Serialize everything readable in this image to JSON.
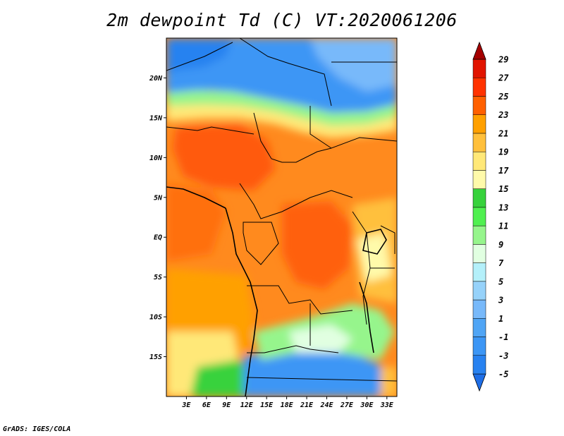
{
  "title": "2m dewpoint Td (C) VT:2020061206",
  "credit": "GrADS: IGES/COLA",
  "map": {
    "lon_range": [
      0,
      34.5
    ],
    "lat_range": [
      -20,
      25
    ],
    "lat_ticks": [
      {
        "value": 20,
        "label": "20N"
      },
      {
        "value": 15,
        "label": "15N"
      },
      {
        "value": 10,
        "label": "10N"
      },
      {
        "value": 5,
        "label": "5N"
      },
      {
        "value": 0,
        "label": "EQ"
      },
      {
        "value": -5,
        "label": "5S"
      },
      {
        "value": -10,
        "label": "10S"
      },
      {
        "value": -15,
        "label": "15S"
      }
    ],
    "lon_ticks": [
      {
        "value": 3,
        "label": "3E"
      },
      {
        "value": 6,
        "label": "6E"
      },
      {
        "value": 9,
        "label": "9E"
      },
      {
        "value": 12,
        "label": "12E"
      },
      {
        "value": 15,
        "label": "15E"
      },
      {
        "value": 18,
        "label": "18E"
      },
      {
        "value": 21,
        "label": "21E"
      },
      {
        "value": 24,
        "label": "24E"
      },
      {
        "value": 27,
        "label": "27E"
      },
      {
        "value": 30,
        "label": "30E"
      },
      {
        "value": 33,
        "label": "33E"
      }
    ]
  },
  "colorbar": {
    "levels": [
      {
        "label": "-5",
        "color": "#1e6ee6"
      },
      {
        "label": "-3",
        "color": "#2882f0"
      },
      {
        "label": "-1",
        "color": "#3c96f5"
      },
      {
        "label": "1",
        "color": "#50a5f5"
      },
      {
        "label": "3",
        "color": "#78b9fa"
      },
      {
        "label": "5",
        "color": "#96d2fa"
      },
      {
        "label": "7",
        "color": "#b4f0fa"
      },
      {
        "label": "9",
        "color": "#e1ffe1"
      },
      {
        "label": "11",
        "color": "#96f58c"
      },
      {
        "label": "13",
        "color": "#50f050"
      },
      {
        "label": "15",
        "color": "#37d23c"
      },
      {
        "label": "17",
        "color": "#fffaaa"
      },
      {
        "label": "19",
        "color": "#ffe878"
      },
      {
        "label": "21",
        "color": "#ffc03c"
      },
      {
        "label": "23",
        "color": "#ffa000"
      },
      {
        "label": "25",
        "color": "#ff6000"
      },
      {
        "label": "27",
        "color": "#ff3200"
      },
      {
        "label": "29",
        "color": "#e11400"
      }
    ],
    "low_end_color": "#1e6ee6",
    "high_end_color": "#c00000",
    "top_color": "#a50000"
  }
}
